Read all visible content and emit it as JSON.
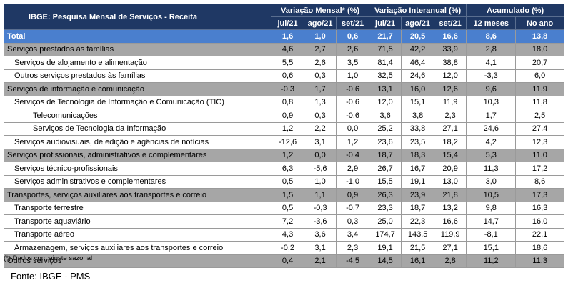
{
  "table": {
    "title": "IBGE: Pesquisa Mensal de Serviços - Receita",
    "groups": [
      "Variação Mensal* (%)",
      "Variação Interanual (%)",
      "Acumulado (%)"
    ],
    "subheaders": [
      "jul/21",
      "ago/21",
      "set/21",
      "jul/21",
      "ago/21",
      "set/21",
      "12 meses",
      "No ano"
    ],
    "rows": [
      {
        "label": "Total",
        "values": [
          "1,6",
          "1,0",
          "0,6",
          "21,7",
          "20,5",
          "16,6",
          "8,6",
          "13,8"
        ]
      },
      {
        "label": "Serviços prestados às famílias",
        "values": [
          "4,6",
          "2,7",
          "2,6",
          "71,5",
          "42,2",
          "33,9",
          "2,8",
          "18,0"
        ]
      },
      {
        "label": "Serviços de alojamento e alimentação",
        "values": [
          "5,5",
          "2,6",
          "3,5",
          "81,4",
          "46,4",
          "38,8",
          "4,1",
          "20,7"
        ]
      },
      {
        "label": "Outros serviços prestados às famílias",
        "values": [
          "0,6",
          "0,3",
          "1,0",
          "32,5",
          "24,6",
          "12,0",
          "-3,3",
          "6,0"
        ]
      },
      {
        "label": "Serviços de informação e comunicação",
        "values": [
          "-0,3",
          "1,7",
          "-0,6",
          "13,1",
          "16,0",
          "12,6",
          "9,6",
          "11,9"
        ]
      },
      {
        "label": "Serviços de Tecnologia de Informação e Comunicação (TIC)",
        "values": [
          "0,8",
          "1,3",
          "-0,6",
          "12,0",
          "15,1",
          "11,9",
          "10,3",
          "11,8"
        ]
      },
      {
        "label": "Telecomunicações",
        "values": [
          "0,9",
          "0,3",
          "-0,6",
          "3,6",
          "3,8",
          "2,3",
          "1,7",
          "2,5"
        ]
      },
      {
        "label": "Serviços de Tecnologia da Informação",
        "values": [
          "1,2",
          "2,2",
          "0,0",
          "25,2",
          "33,8",
          "27,1",
          "24,6",
          "27,4"
        ]
      },
      {
        "label": "Serviços audiovisuais, de edição e agências de notícias",
        "values": [
          "-12,6",
          "3,1",
          "1,2",
          "23,6",
          "23,5",
          "18,2",
          "4,2",
          "12,3"
        ]
      },
      {
        "label": "Serviços profissionais, administrativos e complementares",
        "values": [
          "1,2",
          "0,0",
          "-0,4",
          "18,7",
          "18,3",
          "15,4",
          "5,3",
          "11,0"
        ]
      },
      {
        "label": "Serviços técnico-profissionais",
        "values": [
          "6,3",
          "-5,6",
          "2,9",
          "26,7",
          "16,7",
          "20,9",
          "11,3",
          "17,2"
        ]
      },
      {
        "label": "Serviços administrativos e complementares",
        "values": [
          "0,5",
          "1,0",
          "-1,0",
          "15,5",
          "19,1",
          "13,0",
          "3,0",
          "8,6"
        ]
      },
      {
        "label": "Transportes, serviços auxiliares aos transportes e correio",
        "values": [
          "1,5",
          "1,1",
          "0,9",
          "26,3",
          "23,9",
          "21,8",
          "10,5",
          "17,3"
        ]
      },
      {
        "label": "Transporte terrestre",
        "values": [
          "0,5",
          "-0,3",
          "-0,7",
          "23,3",
          "18,7",
          "13,2",
          "9,8",
          "16,3"
        ]
      },
      {
        "label": "Transporte aquaviário",
        "values": [
          "7,2",
          "-3,6",
          "0,3",
          "25,0",
          "22,3",
          "16,6",
          "14,7",
          "16,0"
        ]
      },
      {
        "label": "Transporte aéreo",
        "values": [
          "4,3",
          "3,6",
          "3,4",
          "174,7",
          "143,5",
          "119,9",
          "-8,1",
          "22,1"
        ]
      },
      {
        "label": "Armazenagem, serviços auxiliares aos transportes e correio",
        "values": [
          "-0,2",
          "3,1",
          "2,3",
          "19,1",
          "21,5",
          "27,1",
          "15,1",
          "18,6"
        ]
      },
      {
        "label": "Outros serviços",
        "values": [
          "0,4",
          "2,1",
          "-4,5",
          "14,5",
          "16,1",
          "2,8",
          "11,2",
          "11,3"
        ]
      }
    ]
  },
  "footnote": "(*) Dados com ajuste sazonal",
  "source": "Fonte: IBGE - PMS",
  "colors": {
    "header": "#1f3864",
    "total": "#4a7fce",
    "group": "#a6a6a6",
    "sub": "#ffffff"
  }
}
